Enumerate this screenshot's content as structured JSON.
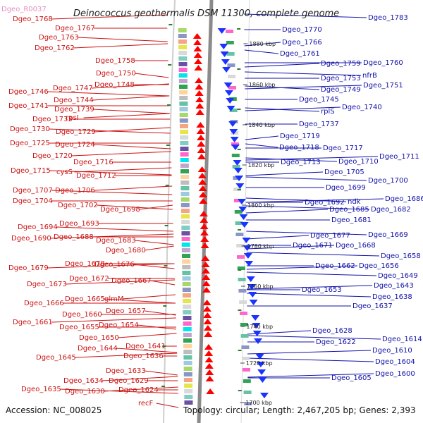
{
  "title": "Deinococcus geothermalis DSM 11300, complete genome",
  "accession": "Accession: NC_008025",
  "summary": "Topology: circular; Length: 2,467,205 bp; Genes: 2,393",
  "colors": {
    "left_label": "#cc1111",
    "right_label": "#1111aa",
    "forward_gene": "#ff0000",
    "reverse_gene": "#1a33ff",
    "backbone": "#888888",
    "tick_dot": "#2e7d32"
  },
  "scale_ticks": [
    "1880 kbp",
    "1860 kbp",
    "1840 kbp",
    "1820 kbp",
    "1800 kbp",
    "1780 kbp",
    "1760 kbp",
    "1740 kbp",
    "1720 kbp",
    "1700 kbp"
  ],
  "left_labels": [
    "Dgeo_R0037",
    "Dgeo_1768",
    "Dgeo_1767",
    "Dgeo_1763",
    "Dgeo_1762",
    "Dgeo_1758",
    "Dgeo_1750",
    "Dgeo_1747",
    "Dgeo_1748",
    "Dgeo_1746",
    "Dgeo_1744",
    "Dgeo_1741",
    "Dgeo_1739",
    "rpsI",
    "Dgeo_1733",
    "Dgeo_1730",
    "Dgeo_1729",
    "Dgeo_1725",
    "Dgeo_1724",
    "Dgeo_1720",
    "Dgeo_1716",
    "Dgeo_1715",
    "cysS",
    "Dgeo_1712",
    "Dgeo_1707",
    "Dgeo_1706",
    "Dgeo_1704",
    "Dgeo_1702",
    "Dgeo_1698",
    "Dgeo_1693",
    "Dgeo_1694",
    "Dgeo_1690",
    "Dgeo_1688",
    "Dgeo_1683",
    "Dgeo_1680",
    "Dgeo_1678",
    "Dgeo_1676",
    "Dgeo_1679",
    "Dgeo_1672",
    "Dgeo_1667",
    "Dgeo_1673",
    "Dgeo_1666",
    "Dgeo_1665",
    "glmM",
    "Dgeo_1660",
    "Dgeo_1657",
    "Dgeo_1661",
    "Dgeo_1655",
    "Dgeo_1654",
    "Dgeo_1650",
    "Dgeo_1641",
    "Dgeo_1644",
    "Dgeo_1645",
    "Dgeo_1636",
    "Dgeo_1633",
    "Dgeo_1634",
    "Dgeo_1629",
    "Dgeo_1635",
    "Dgeo_1630",
    "Dgeo_1624",
    "recF"
  ],
  "right_labels": [
    "Dgeo_1783",
    "Dgeo_1770",
    "Dgeo_1766",
    "Dgeo_1761",
    "Dgeo_1760",
    "Dgeo_1759",
    "nfrB",
    "Dgeo_1753",
    "Dgeo_1751",
    "Dgeo_1749",
    "Dgeo_1745",
    "Dgeo_1740",
    "rplS",
    "Dgeo_1737",
    "Dgeo_1719",
    "Dgeo_1718",
    "Dgeo_1717",
    "Dgeo_1711",
    "Dgeo_1710",
    "Dgeo_1713",
    "Dgeo_1705",
    "Dgeo_1700",
    "Dgeo_1699",
    "Dgeo_1686",
    "ndk",
    "Dgeo_1692",
    "Dgeo_1685",
    "Dgeo_1682",
    "Dgeo_1681",
    "Dgeo_1677",
    "Dgeo_1669",
    "Dgeo_1671",
    "Dgeo_1668",
    "Dgeo_1658",
    "Dgeo_1662",
    "Dgeo_1656",
    "Dgeo_1649",
    "Dgeo_1653",
    "Dgeo_1643",
    "Dgeo_1638",
    "Dgeo_1637",
    "Dgeo_1628",
    "Dgeo_1614",
    "Dgeo_1622",
    "Dgeo_1610",
    "Dgeo_1604",
    "Dgeo_1605",
    "Dgeo_1600"
  ]
}
